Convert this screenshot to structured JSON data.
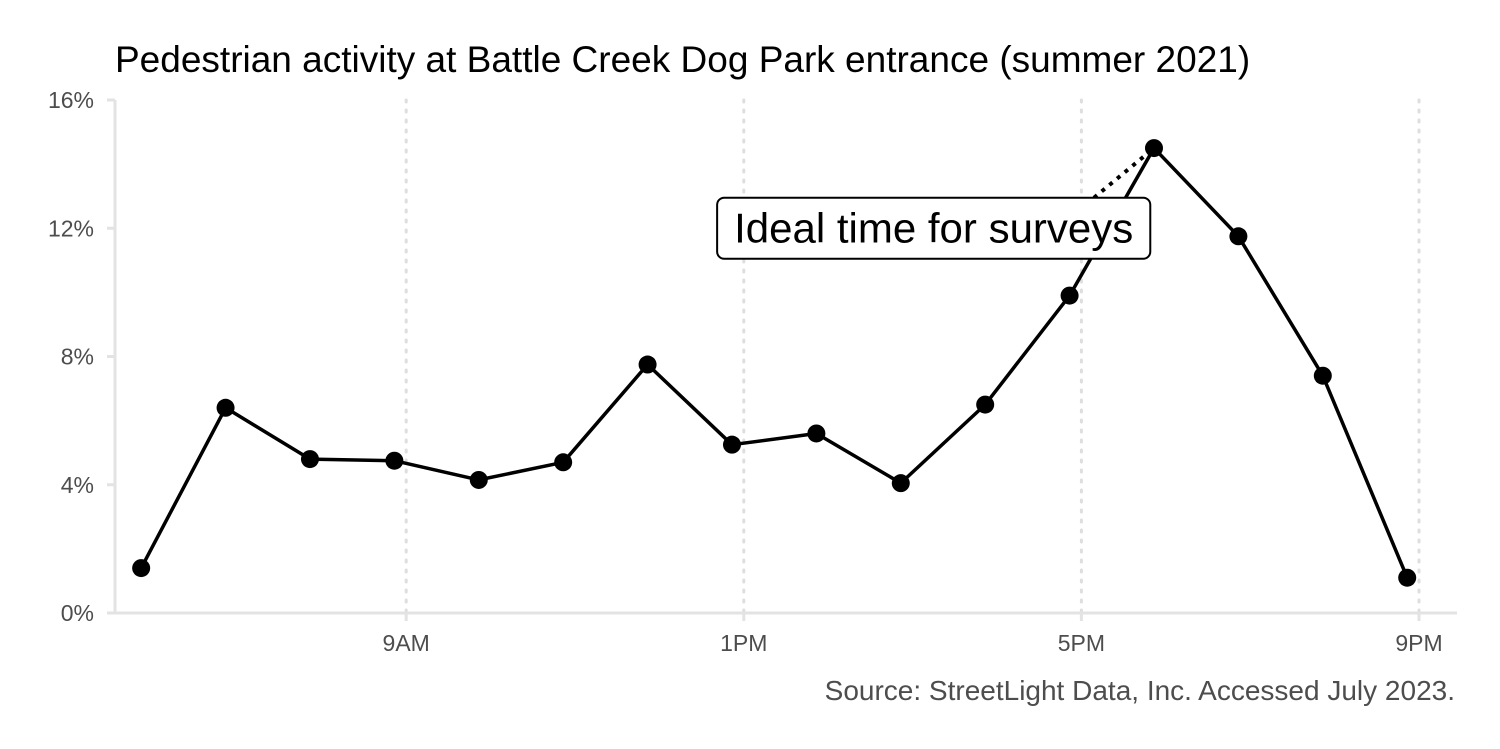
{
  "chart_data": {
    "type": "line",
    "title": "Pedestrian activity at Battle Creek Dog Park entrance (summer 2021)",
    "xlabel": "",
    "ylabel": "",
    "caption": "Source: StreetLight Data, Inc. Accessed July 2023.",
    "x_unit": "hour of day",
    "xlim": [
      5.55,
      21.45
    ],
    "ylim": [
      0,
      16
    ],
    "x_ticks": [
      {
        "value": 9,
        "label": "9AM"
      },
      {
        "value": 13,
        "label": "1PM"
      },
      {
        "value": 17,
        "label": "5PM"
      },
      {
        "value": 21,
        "label": "9PM"
      }
    ],
    "y_ticks": [
      {
        "value": 0,
        "label": "0%"
      },
      {
        "value": 4,
        "label": "4%"
      },
      {
        "value": 8,
        "label": "8%"
      },
      {
        "value": 12,
        "label": "12%"
      },
      {
        "value": 16,
        "label": "16%"
      }
    ],
    "grid": "vertical dotted at x ticks",
    "legend": "none",
    "series": [
      {
        "x": [
          5.86,
          6.86,
          7.86,
          8.86,
          9.86,
          10.86,
          11.86,
          12.86,
          13.86,
          14.86,
          15.86,
          16.86,
          17.86,
          18.86,
          19.86,
          20.86
        ],
        "values": [
          1.4,
          6.4,
          4.8,
          4.75,
          4.15,
          4.7,
          7.75,
          5.25,
          5.6,
          4.05,
          6.5,
          9.9,
          14.5,
          11.75,
          7.4,
          1.1
        ],
        "color": "#000000"
      }
    ],
    "annotation": {
      "text": "Ideal time for surveys",
      "label_at": {
        "x": 15.25,
        "y": 12.0
      },
      "points_to": {
        "x": 17.86,
        "y": 14.5
      }
    }
  }
}
